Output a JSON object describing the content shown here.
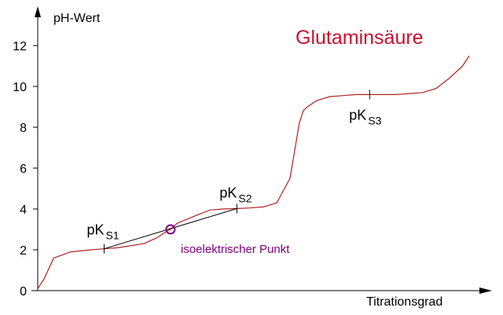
{
  "chart_data": {
    "type": "line",
    "title": "Glutaminsäure",
    "xlabel": "Titrationsgrad",
    "ylabel": "pH-Wert",
    "ylim": [
      0,
      13.5
    ],
    "xlim": [
      0,
      3.25
    ],
    "yticks": [
      0,
      2,
      4,
      6,
      8,
      10,
      12
    ],
    "ytick_labels": [
      "0",
      "2",
      "4",
      "6",
      "8",
      "10",
      "12"
    ],
    "grid": false,
    "series": [
      {
        "values_x": [
          0.0,
          0.05,
          0.12,
          0.25,
          0.4,
          0.5,
          0.6,
          0.8,
          0.9,
          0.97,
          1.0,
          1.05,
          1.2,
          1.3,
          1.4,
          1.5,
          1.6,
          1.7,
          1.8,
          1.9,
          1.97,
          2.0,
          2.03,
          2.1,
          2.2,
          2.3,
          2.4,
          2.5,
          2.6,
          2.7,
          2.8,
          2.9,
          3.0,
          3.1,
          3.2,
          3.25
        ],
        "values_y": [
          0.1,
          0.6,
          1.6,
          1.9,
          2.0,
          2.05,
          2.1,
          2.3,
          2.6,
          2.9,
          3.0,
          3.3,
          3.7,
          3.95,
          4.0,
          4.02,
          4.05,
          4.1,
          4.3,
          5.5,
          8.2,
          8.8,
          9.0,
          9.3,
          9.5,
          9.55,
          9.6,
          9.6,
          9.6,
          9.6,
          9.65,
          9.7,
          9.9,
          10.4,
          11.0,
          11.5
        ]
      }
    ],
    "annotations": [
      {
        "label": "pK",
        "sub": "S1",
        "x": 0.5,
        "y": 2.05
      },
      {
        "label": "pK",
        "sub": "S2",
        "x": 1.5,
        "y": 4.02
      },
      {
        "label": "pK",
        "sub": "S3",
        "x": 2.5,
        "y": 9.6
      }
    ],
    "isoelectric_point": {
      "label": "isoelektrischer Punkt",
      "x": 1.0,
      "y": 3.0
    },
    "colors": {
      "curve": "#b22222",
      "title": "#c8102e",
      "iso": "#800080",
      "axis": "#000000"
    }
  }
}
